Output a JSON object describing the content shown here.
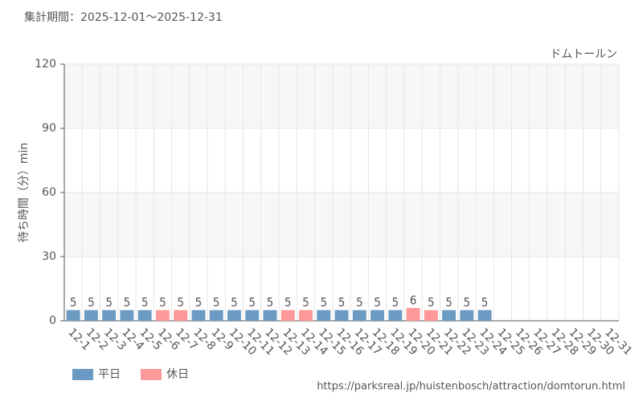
{
  "chart_data": {
    "type": "bar",
    "period": "集計期間：2025-12-01～2025-12-31",
    "title": "ドムトールン",
    "y_label": "待ち時間（分）min",
    "source": "https://parksreal.jp/huistenbosch/attraction/domtorun.html",
    "categories": [
      "12-1",
      "12-2",
      "12-3",
      "12-4",
      "12-5",
      "12-6",
      "12-7",
      "12-8",
      "12-9",
      "12-10",
      "12-11",
      "12-12",
      "12-13",
      "12-14",
      "12-15",
      "12-16",
      "12-17",
      "12-18",
      "12-19",
      "12-20",
      "12-21",
      "12-22",
      "12-23",
      "12-24",
      "12-25",
      "12-26",
      "12-27",
      "12-28",
      "12-29",
      "12-30",
      "12-31"
    ],
    "category_colors": [
      "#555",
      "#555",
      "#555",
      "#555",
      "#555",
      "#f08080",
      "#f08080",
      "#555",
      "#555",
      "#555",
      "#555",
      "#555",
      "#f08080",
      "#f08080",
      "#555",
      "#555",
      "#555",
      "#555",
      "#555",
      "#f08080",
      "#f08080",
      "#555",
      "#555",
      "#555",
      "#555",
      "#555",
      "#f08080",
      "#f08080",
      "#555",
      "#555",
      "#555"
    ],
    "series": [
      {
        "name": "平日",
        "color": "#6b9bc3",
        "values": [
          5,
          5,
          5,
          5,
          5,
          null,
          null,
          5,
          5,
          5,
          5,
          5,
          null,
          null,
          5,
          5,
          5,
          5,
          5,
          null,
          null,
          5,
          5,
          5,
          null,
          null,
          null,
          null,
          null,
          null,
          null
        ]
      },
      {
        "name": "休日",
        "color": "#ff9999",
        "values": [
          null,
          null,
          null,
          null,
          null,
          5,
          5,
          null,
          null,
          null,
          null,
          null,
          5,
          5,
          null,
          null,
          null,
          null,
          null,
          6,
          5,
          null,
          null,
          null,
          null,
          null,
          null,
          null,
          null,
          null,
          null
        ]
      }
    ],
    "ylim": [
      0,
      120
    ],
    "yticks": [
      0,
      30,
      60,
      90,
      120
    ],
    "grid": true
  }
}
